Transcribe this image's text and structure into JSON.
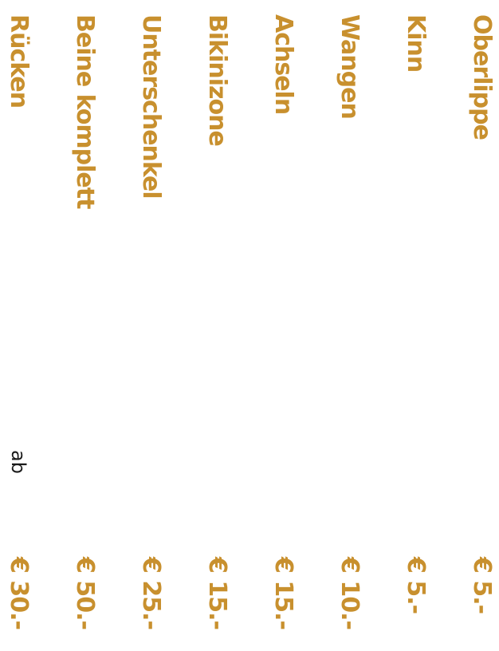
{
  "price_list": {
    "prefix": "ab",
    "items": [
      {
        "name": "Oberlippe",
        "price": "€ 5.-"
      },
      {
        "name": "Kinn",
        "price": "€ 5.-"
      },
      {
        "name": "Wangen",
        "price": "€ 10.-"
      },
      {
        "name": "Achseln",
        "price": "€ 15.-"
      },
      {
        "name": "Bikinizone",
        "price": "€ 15.-"
      },
      {
        "name": "Unterschenkel",
        "price": "€ 25.-"
      },
      {
        "name": "Beine komplett",
        "price": "€ 50.-"
      },
      {
        "name": "Rücken",
        "price": "€ 30.-"
      }
    ]
  },
  "colors": {
    "accent": "#c8902e",
    "text": "#1a1a1a",
    "background": "#ffffff"
  }
}
